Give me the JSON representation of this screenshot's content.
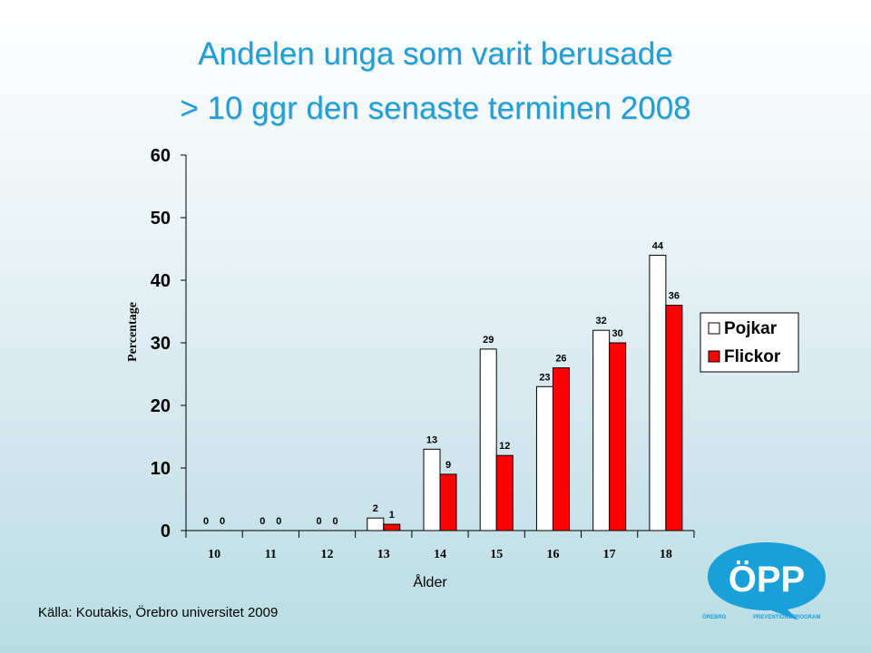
{
  "slide": {
    "title_line1": "Andelen unga som varit berusade",
    "title_line2": "> 10 ggr den senaste terminen 2008",
    "source": "Källa: Koutakis, Örebro universitet 2009"
  },
  "logo": {
    "main_text": "ÖPP",
    "left_text": "ÖREBRO",
    "right_text": "PREVENTIONSPROGRAM"
  },
  "chart_data": {
    "type": "bar",
    "xlabel": "Ålder",
    "ylabel": "Percentage",
    "ylim": [
      0,
      60
    ],
    "yticks": [
      0,
      10,
      20,
      30,
      40,
      50,
      60
    ],
    "categories": [
      "10",
      "11",
      "12",
      "13",
      "14",
      "15",
      "16",
      "17",
      "18"
    ],
    "series": [
      {
        "name": "Pojkar",
        "color": "#ffffff",
        "values": [
          0,
          0,
          0,
          2,
          13,
          29,
          23,
          32,
          44
        ]
      },
      {
        "name": "Flickor",
        "color": "#ff0000",
        "values": [
          0,
          0,
          0,
          1,
          9,
          12,
          26,
          30,
          36
        ]
      }
    ],
    "grid": false,
    "legend": "right"
  }
}
